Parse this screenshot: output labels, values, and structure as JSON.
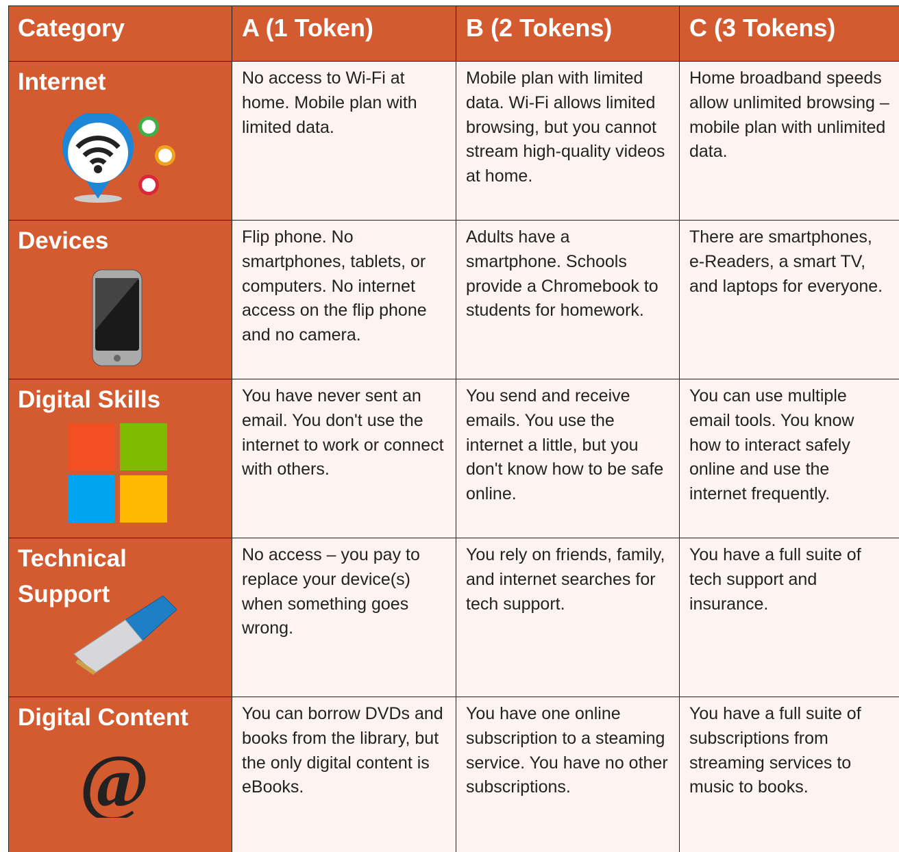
{
  "table": {
    "header": [
      "Category",
      "A (1 Token)",
      "B (2 Tokens)",
      "C (3 Tokens)"
    ],
    "rows": [
      {
        "category": "Internet",
        "cells": [
          "No access to Wi-Fi at home. Mobile plan with limited data.",
          "Mobile plan with limited data. Wi-Fi allows limited browsing, but you cannot stream high-quality videos at home.",
          "Home broadband speeds allow unlimited browsing – mobile plan with unlimited data."
        ]
      },
      {
        "category": "Devices",
        "cells": [
          "Flip phone. No smartphones, tablets, or computers. No internet access on the flip phone and no camera.",
          "Adults have a smartphone. Schools provide a Chromebook to students for homework.",
          "There are smartphones, e-Readers, a smart TV, and laptops for everyone."
        ]
      },
      {
        "category": "Digital Skills",
        "cells": [
          "You have never sent an email. You don't use the internet to work or connect with others.",
          "You send and receive emails. You use the internet a little, but you don't know how to be safe online.",
          "You can use multiple email tools. You know how to interact safely online and use the internet frequently."
        ]
      },
      {
        "category": "Technical Support",
        "cells": [
          "No access – you pay to replace your device(s) when something goes wrong.",
          "You rely on friends, family, and internet searches for tech support.",
          "You have a full suite of tech support and insurance."
        ]
      },
      {
        "category": "Digital Content",
        "cells": [
          "You can borrow DVDs and books from the library, but the only digital content is eBooks.",
          "You have one online subscription to a steaming service. You have no other subscriptions.",
          "You have a full suite of subscriptions from streaming services to music to books."
        ]
      }
    ]
  }
}
